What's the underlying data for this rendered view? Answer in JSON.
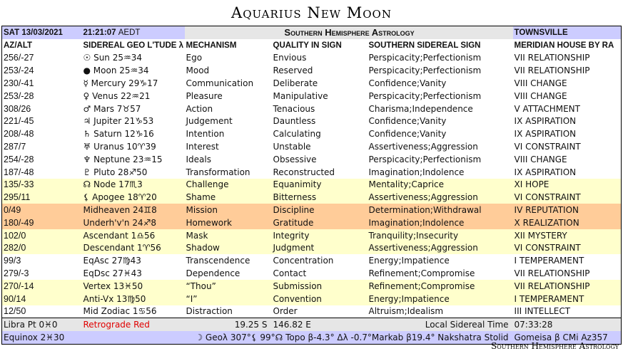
{
  "title": "Aquarius New Moon",
  "header": {
    "date": "SAT 13/03/2021",
    "time": "21:21:07",
    "tz": "AEDT",
    "banner": "Southern Hemisphere Astrology",
    "location": "TOWNSVILLE"
  },
  "columns": [
    "AZ/ALT",
    "SIDEREAL GEO L'TUDE λ",
    "MECHANISM",
    "QUALITY IN SIGN",
    "SOUTHERN SIDEREAL SIGN",
    "MERIDIAN HOUSE BY RA"
  ],
  "rows": [
    {
      "azalt": "256/-27",
      "body": "☉ Sun 25♒34",
      "mech": "Ego",
      "quality": "Envious",
      "sign": "Perspicacity;Perfectionism",
      "house": "VII RELATIONSHIP",
      "bg": "white"
    },
    {
      "azalt": "253/-24",
      "body": "● Moon 25♒34",
      "mech": "Mood",
      "quality": "Reserved",
      "sign": "Perspicacity;Perfectionism",
      "house": "VII RELATIONSHIP",
      "bg": "white"
    },
    {
      "azalt": "230/-41",
      "body": "☿ Mercury 29♑17",
      "mech": "Communication",
      "quality": "Deliberate",
      "sign": "Confidence;Vanity",
      "house": "VIII CHANGE",
      "bg": "white"
    },
    {
      "azalt": "253/-28",
      "body": "♀ Venus 22♒21",
      "mech": "Pleasure",
      "quality": "Manipulative",
      "sign": "Perspicacity;Perfectionism",
      "house": "VIII CHANGE",
      "bg": "white"
    },
    {
      "azalt": "308/26",
      "body": "♂ Mars 7♉57",
      "mech": "Action",
      "quality": "Tenacious",
      "sign": "Charisma;Independence",
      "house": "V ATTACHMENT",
      "bg": "white"
    },
    {
      "azalt": "221/-45",
      "body": "♃ Jupiter 21♑53",
      "mech": "Judgement",
      "quality": "Dauntless",
      "sign": "Confidence;Vanity",
      "house": "IX ASPIRATION",
      "bg": "white"
    },
    {
      "azalt": "208/-48",
      "body": "♄ Saturn 12♑16",
      "mech": "Intention",
      "quality": "Calculating",
      "sign": "Confidence;Vanity",
      "house": "IX ASPIRATION",
      "bg": "white"
    },
    {
      "azalt": "287/7",
      "body": "♅ Uranus 10♈39",
      "mech": "Interest",
      "quality": "Unstable",
      "sign": "Assertiveness;Aggression",
      "house": "VI CONSTRAINT",
      "bg": "white"
    },
    {
      "azalt": "254/-28",
      "body": "♆ Neptune 23♒15",
      "mech": "Ideals",
      "quality": "Obsessive",
      "sign": "Perspicacity;Perfectionism",
      "house": "VIII CHANGE",
      "bg": "white"
    },
    {
      "azalt": "187/-48",
      "body": "♇ Pluto 28♐50",
      "mech": "Transformation",
      "quality": "Reconstructed",
      "sign": "Imagination;Indolence",
      "house": "IX ASPIRATION",
      "bg": "white"
    },
    {
      "azalt": "135/-33",
      "body": "☊ Node 17♏3",
      "mech": "Challenge",
      "quality": "Equanimity",
      "sign": "Mentality;Caprice",
      "house": "XI HOPE",
      "bg": "yellow"
    },
    {
      "azalt": "295/11",
      "body": "⚸ Apogee 18♈20",
      "mech": "Shame",
      "quality": "Bitterness",
      "sign": "Assertiveness;Aggression",
      "house": "VI CONSTRAINT",
      "bg": "yellow"
    },
    {
      "azalt": "0/49",
      "body": "Midheaven 24♊8",
      "mech": "Mission",
      "quality": "Discipline",
      "sign": "Determination;Withdrawal",
      "house": "IV REPUTATION",
      "bg": "orange"
    },
    {
      "azalt": "180/-49",
      "body": "Underh'v'n 24♐8",
      "mech": "Homework",
      "quality": "Gratitude",
      "sign": "Imagination;Indolence",
      "house": "X REALIZATION",
      "bg": "orange"
    },
    {
      "azalt": "102/0",
      "body": "Ascendant 1♎56",
      "mech": "Mask",
      "quality": "Integrity",
      "sign": "Tranquility;Insecurity",
      "house": "XII MYSTERY",
      "bg": "yellow"
    },
    {
      "azalt": "282/0",
      "body": "Descendant 1♈56",
      "mech": "Shadow",
      "quality": "Judgment",
      "sign": "Assertiveness;Aggression",
      "house": "VI CONSTRAINT",
      "bg": "yellow"
    },
    {
      "azalt": "99/3",
      "body": "EqAsc 27♍43",
      "mech": "Transcendence",
      "quality": "Concentration",
      "sign": "Energy;Impatience",
      "house": "I TEMPERAMENT",
      "bg": "white"
    },
    {
      "azalt": "279/-3",
      "body": "EqDsc 27♓43",
      "mech": "Dependence",
      "quality": "Contact",
      "sign": "Refinement;Compromise",
      "house": "VII RELATIONSHIP",
      "bg": "white"
    },
    {
      "azalt": "270/-14",
      "body": "Vertex 13♓50",
      "mech": "“Thou”",
      "quality": "Submission",
      "sign": "Refinement;Compromise",
      "house": "VII RELATIONSHIP",
      "bg": "yellow"
    },
    {
      "azalt": "90/14",
      "body": "Anti-Vx 13♍50",
      "mech": "“I”",
      "quality": "Convention",
      "sign": "Energy;Impatience",
      "house": "I TEMPERAMENT",
      "bg": "yellow"
    },
    {
      "azalt": "12/50",
      "body": "Mid Zodiac 1♋56",
      "mech": "Distraction",
      "quality": "Order",
      "sign": "Altruism;Idealism",
      "house": "III INTELLECT",
      "bg": "white"
    }
  ],
  "summary": {
    "libra": "Libra Pt 0♓0",
    "retro": "Retrograde Red",
    "lat": "19.25 S",
    "lon": "146.82 E",
    "lst_label": "Local Sidereal Time",
    "lst": "07:33:28"
  },
  "equinox": {
    "label": "Equinox 2♓30",
    "info": "☽ Geoλ 307°⚸ 99°☊ Topo β-4.3° Δλ -0.7°Markab β19.4° Nakshatra Stolid",
    "star": "Gomeisa β CMi Az357"
  },
  "footer": "Southern Hemisphere Astrology",
  "colors": {
    "blue": "#ccccff",
    "gray": "#e6e6e6",
    "yellow": "#ffffcc",
    "orange": "#ffcc99",
    "retro": "#e00000"
  }
}
